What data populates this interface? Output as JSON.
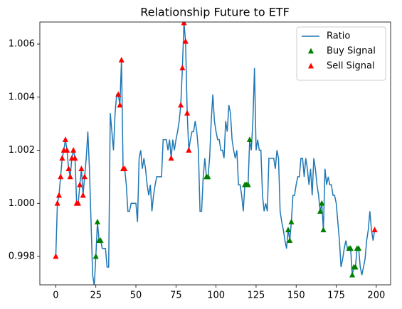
{
  "chart_data": {
    "type": "line",
    "title": "Relationship Future to ETF",
    "xlim": [
      -9.95,
      208.95
    ],
    "ylim": [
      0.99693,
      1.00683
    ],
    "xticks": [
      0,
      25,
      50,
      75,
      100,
      125,
      150,
      175,
      200
    ],
    "yticks": [
      0.998,
      {
        "value": 1.0,
        "label": "1.000"
      },
      1.002,
      1.004,
      1.006
    ],
    "legend": "upper right",
    "series": [
      {
        "name": "Ratio",
        "kind": "line",
        "color": "#1f77b4",
        "x": [
          0,
          1,
          2,
          3,
          4,
          5,
          6,
          7,
          8,
          9,
          10,
          11,
          12,
          13,
          14,
          15,
          16,
          17,
          18,
          19,
          20,
          21,
          22,
          23,
          24,
          25,
          26,
          27,
          28,
          29,
          30,
          31,
          32,
          33,
          34,
          35,
          36,
          37,
          38,
          39,
          40,
          41,
          42,
          43,
          44,
          45,
          46,
          47,
          48,
          49,
          50,
          51,
          52,
          53,
          54,
          55,
          56,
          57,
          58,
          59,
          60,
          61,
          62,
          63,
          64,
          65,
          66,
          67,
          68,
          69,
          70,
          71,
          72,
          73,
          74,
          75,
          76,
          77,
          78,
          79,
          80,
          81,
          82,
          83,
          84,
          85,
          86,
          87,
          88,
          89,
          90,
          91,
          92,
          93,
          94,
          95,
          96,
          97,
          98,
          99,
          100,
          101,
          102,
          103,
          104,
          105,
          106,
          107,
          108,
          109,
          110,
          111,
          112,
          113,
          114,
          115,
          116,
          117,
          118,
          119,
          120,
          121,
          122,
          123,
          124,
          125,
          126,
          127,
          128,
          129,
          130,
          131,
          132,
          133,
          134,
          135,
          136,
          137,
          138,
          139,
          140,
          141,
          142,
          143,
          144,
          145,
          146,
          147,
          148,
          149,
          150,
          151,
          152,
          153,
          154,
          155,
          156,
          157,
          158,
          159,
          160,
          161,
          162,
          163,
          164,
          165,
          166,
          167,
          168,
          169,
          170,
          171,
          172,
          173,
          174,
          175,
          176,
          177,
          178,
          179,
          180,
          181,
          182,
          183,
          184,
          185,
          186,
          187,
          188,
          189,
          190,
          191,
          192,
          193,
          194,
          195,
          196,
          197,
          198,
          199
        ],
        "values": [
          0.998,
          1.0,
          1.0003,
          1.001,
          1.0017,
          1.002,
          1.0024,
          1.002,
          1.0013,
          1.001,
          1.0017,
          1.002,
          1.0017,
          1.0,
          1.0,
          1.0007,
          1.0013,
          1.0003,
          1.001,
          1.0017,
          1.0027,
          1.0013,
          0.9993,
          0.9973,
          0.9969,
          0.998,
          0.9993,
          0.9986,
          0.9986,
          0.9983,
          0.9983,
          0.9983,
          0.9976,
          0.9976,
          1.0034,
          1.0027,
          1.002,
          1.0034,
          1.0041,
          1.0041,
          1.0037,
          1.0054,
          1.0013,
          1.0013,
          1.0007,
          0.9997,
          0.9997,
          1.0,
          1.0,
          1.0,
          1.0,
          0.9993,
          1.0017,
          1.002,
          1.0013,
          1.0017,
          1.0013,
          1.0007,
          1.0003,
          1.0007,
          0.9997,
          1.0003,
          1.0007,
          1.001,
          1.001,
          1.001,
          1.001,
          1.0024,
          1.0024,
          1.0024,
          1.002,
          1.0024,
          1.0017,
          1.0024,
          1.002,
          1.0024,
          1.0027,
          1.0031,
          1.0037,
          1.0051,
          1.0068,
          1.0061,
          1.0034,
          1.002,
          1.0024,
          1.0027,
          1.0027,
          1.0031,
          1.0027,
          1.002,
          0.9997,
          0.9997,
          1.001,
          1.0017,
          1.001,
          1.001,
          1.0017,
          1.0031,
          1.0041,
          1.0031,
          1.0027,
          1.0024,
          1.0024,
          1.002,
          1.002,
          1.0017,
          1.0031,
          1.0027,
          1.0037,
          1.0034,
          1.0024,
          1.002,
          1.0017,
          1.002,
          1.0007,
          1.0007,
          1.0003,
          0.9997,
          1.0007,
          1.0007,
          1.0007,
          1.0024,
          1.002,
          1.0031,
          1.0051,
          1.002,
          1.0024,
          1.002,
          1.002,
          1.0003,
          0.9997,
          1.0,
          0.9997,
          1.0017,
          1.0017,
          1.0017,
          1.0017,
          1.0013,
          1.002,
          1.0017,
          0.9997,
          0.9993,
          0.999,
          0.9986,
          0.9983,
          0.999,
          0.9986,
          0.9993,
          1.0003,
          1.0003,
          1.0007,
          1.001,
          1.001,
          1.0017,
          1.0017,
          1.001,
          1.0017,
          1.0013,
          1.0007,
          1.0013,
          1.0003,
          1.0017,
          1.0013,
          1.0007,
          1.0003,
          0.9997,
          1.0,
          0.999,
          1.0013,
          1.0007,
          1.001,
          1.0007,
          1.0007,
          1.0003,
          1.0003,
          1.0,
          0.9993,
          0.9986,
          0.9976,
          0.9979,
          0.9983,
          0.9986,
          0.9983,
          0.9983,
          0.9983,
          0.9973,
          0.9976,
          0.9976,
          0.9983,
          0.9983,
          0.9976,
          0.9973,
          0.9976,
          0.9979,
          0.9986,
          0.999,
          0.9997,
          0.999,
          0.9986,
          0.999
        ]
      },
      {
        "name": "Buy Signal",
        "kind": "marker",
        "color": "#008000",
        "x": [
          25,
          26,
          27,
          28,
          94,
          95,
          118,
          119,
          120,
          121,
          145,
          146,
          147,
          165,
          166,
          167,
          183,
          184,
          185,
          186,
          187,
          188,
          189
        ],
        "values": [
          0.998,
          0.9993,
          0.9986,
          0.9986,
          1.001,
          1.001,
          1.0007,
          1.0007,
          1.0007,
          1.0024,
          0.999,
          0.9986,
          0.9993,
          0.9997,
          1.0,
          0.999,
          0.9983,
          0.9983,
          0.9973,
          0.9976,
          0.9976,
          0.9983,
          0.9983
        ]
      },
      {
        "name": "Sell Signal",
        "kind": "marker",
        "color": "#ff0000",
        "x": [
          0,
          1,
          2,
          3,
          4,
          5,
          6,
          7,
          8,
          9,
          10,
          11,
          12,
          13,
          14,
          15,
          16,
          17,
          18,
          39,
          40,
          41,
          42,
          43,
          72,
          78,
          79,
          80,
          81,
          82,
          83,
          199
        ],
        "values": [
          0.998,
          1.0,
          1.0003,
          1.001,
          1.0017,
          1.002,
          1.0024,
          1.002,
          1.0013,
          1.001,
          1.0017,
          1.002,
          1.0017,
          1.0,
          1.0,
          1.0007,
          1.0013,
          1.0003,
          1.001,
          1.0041,
          1.0037,
          1.0054,
          1.0013,
          1.0013,
          1.0017,
          1.0037,
          1.0051,
          1.0068,
          1.0061,
          1.0034,
          1.002,
          0.999
        ]
      }
    ]
  }
}
